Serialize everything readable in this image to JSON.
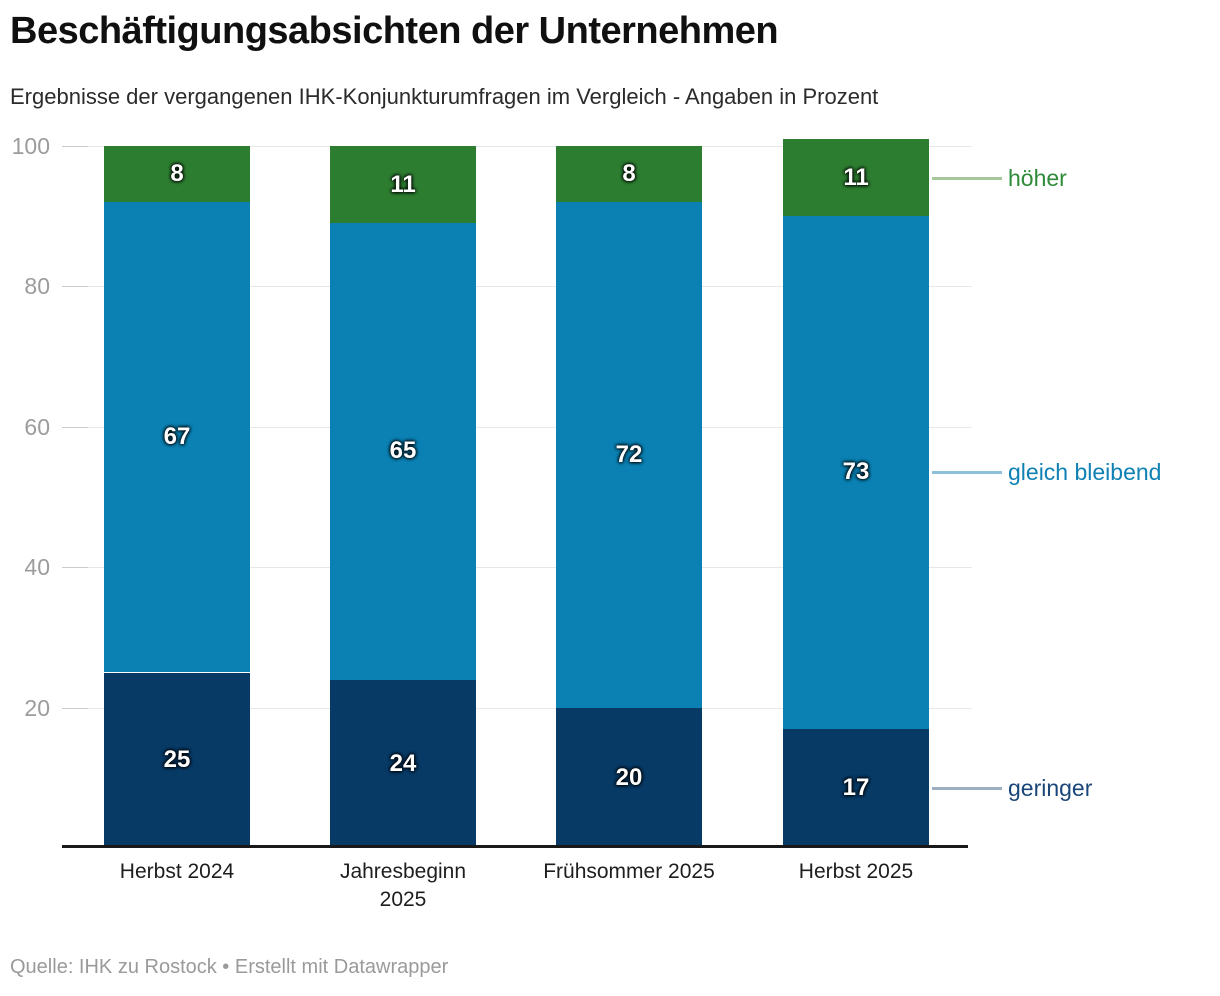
{
  "header": {
    "title": "Beschäftigungsabsichten der Unternehmen",
    "subtitle": "Ergebnisse der vergangenen IHK-Konjunkturumfragen im Vergleich - Angaben in Prozent"
  },
  "footer": {
    "text": "Quelle: IHK zu Rostock • Erstellt mit Datawrapper"
  },
  "chart_data": {
    "type": "bar",
    "stacked": true,
    "title": "Beschäftigungsabsichten der Unternehmen",
    "subtitle": "Ergebnisse der vergangenen IHK-Konjunkturumfragen im Vergleich - Angaben in Prozent",
    "categories": [
      "Herbst 2024",
      "Jahresbeginn\n2025",
      "Frühsommer 2025",
      "Herbst 2025"
    ],
    "series": [
      {
        "name": "geringer",
        "color": "#083a66",
        "label_color": "#1b4679",
        "line_color": "#9dadc2",
        "values": [
          25,
          24,
          20,
          17
        ]
      },
      {
        "name": "gleich bleibend",
        "color": "#0b80b2",
        "label_color": "#0f81b4",
        "line_color": "#8cc1dc",
        "values": [
          67,
          65,
          72,
          73
        ]
      },
      {
        "name": "höher",
        "color": "#2d7d31",
        "label_color": "#2e8b3a",
        "line_color": "#a4c89b",
        "values": [
          8,
          11,
          8,
          11
        ]
      }
    ],
    "ylim": [
      0,
      100
    ],
    "yticks": [
      20,
      40,
      60,
      80,
      100
    ],
    "grid": true,
    "legend_position": "right-annotations",
    "value_labels": true
  }
}
